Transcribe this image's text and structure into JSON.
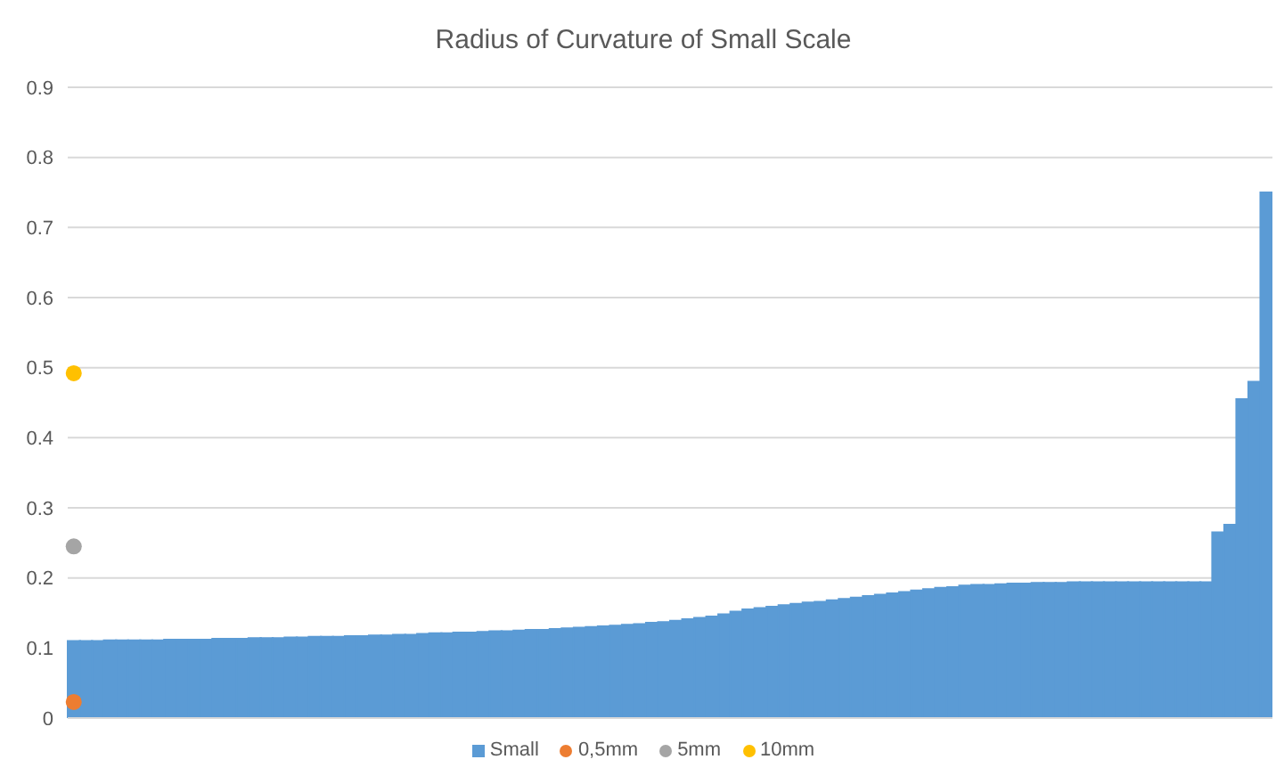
{
  "chart_data": {
    "type": "bar",
    "title": "Radius of Curvature of Small Scale",
    "categories": [
      null,
      null,
      null,
      null,
      null,
      null,
      null,
      null,
      null,
      null,
      null,
      null,
      null,
      null,
      null,
      null,
      null,
      null,
      null,
      null,
      null,
      null,
      null,
      null,
      null,
      null,
      null,
      null,
      null,
      null,
      null,
      null,
      null,
      null,
      null,
      null,
      null,
      null,
      null,
      null,
      null,
      null,
      null,
      null,
      null,
      null,
      null,
      null,
      null,
      null,
      null,
      null,
      null,
      null,
      null,
      null,
      null,
      null,
      null,
      null,
      null,
      null,
      null,
      null,
      null,
      null,
      null,
      null,
      null,
      null,
      null,
      null,
      null,
      null,
      null,
      null,
      null,
      null,
      null,
      null,
      null,
      null,
      null,
      null,
      null,
      null,
      null,
      null,
      null,
      null,
      null,
      null,
      null,
      null,
      null,
      null,
      null,
      null,
      null,
      null
    ],
    "series": [
      {
        "name": "Small",
        "color": "#5b9bd5",
        "values": [
          0.11,
          0.11,
          0.11,
          0.111,
          0.111,
          0.111,
          0.111,
          0.111,
          0.112,
          0.112,
          0.112,
          0.112,
          0.113,
          0.113,
          0.113,
          0.114,
          0.114,
          0.114,
          0.115,
          0.115,
          0.116,
          0.116,
          0.116,
          0.117,
          0.117,
          0.118,
          0.118,
          0.119,
          0.119,
          0.12,
          0.121,
          0.121,
          0.122,
          0.122,
          0.123,
          0.124,
          0.124,
          0.125,
          0.126,
          0.126,
          0.127,
          0.128,
          0.129,
          0.13,
          0.131,
          0.132,
          0.133,
          0.134,
          0.136,
          0.137,
          0.139,
          0.141,
          0.143,
          0.145,
          0.148,
          0.152,
          0.155,
          0.157,
          0.159,
          0.161,
          0.163,
          0.165,
          0.166,
          0.168,
          0.17,
          0.172,
          0.174,
          0.176,
          0.178,
          0.18,
          0.182,
          0.184,
          0.186,
          0.187,
          0.189,
          0.19,
          0.19,
          0.191,
          0.192,
          0.192,
          0.193,
          0.193,
          0.193,
          0.194,
          0.194,
          0.194,
          0.194,
          0.194,
          0.194,
          0.194,
          0.194,
          0.194,
          0.194,
          0.194,
          0.194,
          0.265,
          0.276,
          0.455,
          0.48,
          0.75
        ]
      },
      {
        "name": "0,5mm",
        "type": "scatter",
        "color": "#ed7d31",
        "values": [
          0.023,
          null,
          null,
          null,
          null,
          null,
          null,
          null,
          null,
          null,
          null,
          null,
          null,
          null,
          null,
          null,
          null,
          null,
          null,
          null,
          null,
          null,
          null,
          null,
          null,
          null,
          null,
          null,
          null,
          null,
          null,
          null,
          null,
          null,
          null,
          null,
          null,
          null,
          null,
          null,
          null,
          null,
          null,
          null,
          null,
          null,
          null,
          null,
          null,
          null,
          null,
          null,
          null,
          null,
          null,
          null,
          null,
          null,
          null,
          null,
          null,
          null,
          null,
          null,
          null,
          null,
          null,
          null,
          null,
          null,
          null,
          null,
          null,
          null,
          null,
          null,
          null,
          null,
          null,
          null,
          null,
          null,
          null,
          null,
          null,
          null,
          null,
          null,
          null,
          null,
          null,
          null,
          null,
          null,
          null,
          null,
          null,
          null,
          null,
          null
        ]
      },
      {
        "name": "5mm",
        "type": "scatter",
        "color": "#a5a5a5",
        "values": [
          0.245,
          null,
          null,
          null,
          null,
          null,
          null,
          null,
          null,
          null,
          null,
          null,
          null,
          null,
          null,
          null,
          null,
          null,
          null,
          null,
          null,
          null,
          null,
          null,
          null,
          null,
          null,
          null,
          null,
          null,
          null,
          null,
          null,
          null,
          null,
          null,
          null,
          null,
          null,
          null,
          null,
          null,
          null,
          null,
          null,
          null,
          null,
          null,
          null,
          null,
          null,
          null,
          null,
          null,
          null,
          null,
          null,
          null,
          null,
          null,
          null,
          null,
          null,
          null,
          null,
          null,
          null,
          null,
          null,
          null,
          null,
          null,
          null,
          null,
          null,
          null,
          null,
          null,
          null,
          null,
          null,
          null,
          null,
          null,
          null,
          null,
          null,
          null,
          null,
          null,
          null,
          null,
          null,
          null,
          null,
          null,
          null,
          null,
          null,
          null
        ]
      },
      {
        "name": "10mm",
        "type": "scatter",
        "color": "#ffc000",
        "values": [
          0.492,
          null,
          null,
          null,
          null,
          null,
          null,
          null,
          null,
          null,
          null,
          null,
          null,
          null,
          null,
          null,
          null,
          null,
          null,
          null,
          null,
          null,
          null,
          null,
          null,
          null,
          null,
          null,
          null,
          null,
          null,
          null,
          null,
          null,
          null,
          null,
          null,
          null,
          null,
          null,
          null,
          null,
          null,
          null,
          null,
          null,
          null,
          null,
          null,
          null,
          null,
          null,
          null,
          null,
          null,
          null,
          null,
          null,
          null,
          null,
          null,
          null,
          null,
          null,
          null,
          null,
          null,
          null,
          null,
          null,
          null,
          null,
          null,
          null,
          null,
          null,
          null,
          null,
          null,
          null,
          null,
          null,
          null,
          null,
          null,
          null,
          null,
          null,
          null,
          null,
          null,
          null,
          null,
          null,
          null,
          null,
          null,
          null,
          null,
          null
        ]
      }
    ],
    "ylim": [
      0,
      0.9
    ],
    "yticks": [
      0,
      0.1,
      0.2,
      0.3,
      0.4,
      0.5,
      0.6,
      0.7,
      0.8,
      0.9
    ],
    "grid": "y",
    "legend": "bottom",
    "tick_labels": "y",
    "marker": "circle"
  }
}
